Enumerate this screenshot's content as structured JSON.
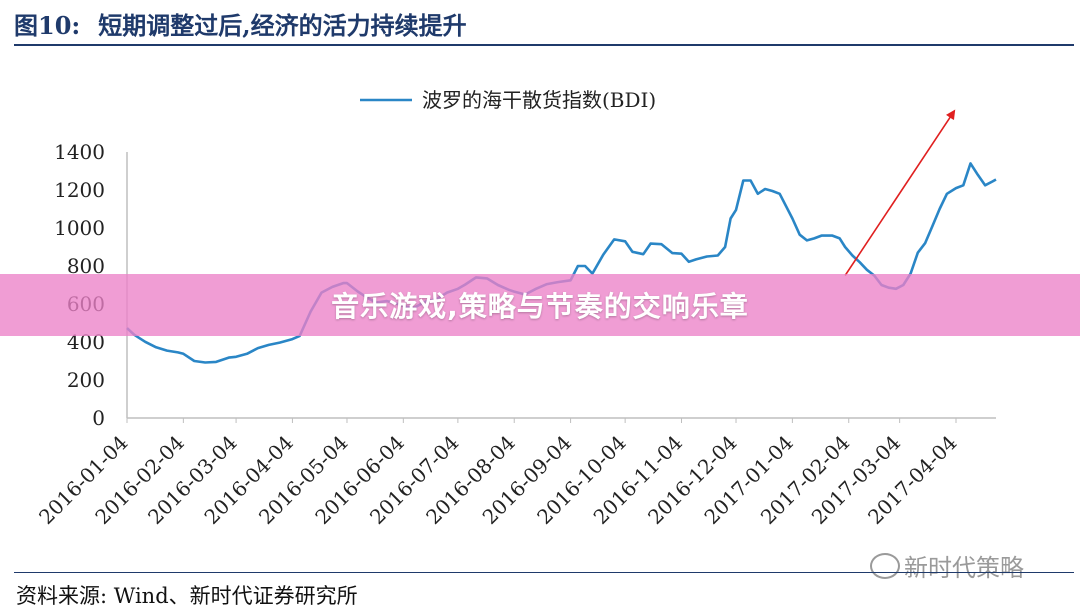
{
  "figure": {
    "label": "图10:",
    "title": "短期调整过后,经济的活力持续提升",
    "source": "资料来源: Wind、新时代证券研究所"
  },
  "overlay": {
    "text": "音乐游戏,策略与节奏的交响乐章"
  },
  "watermark": {
    "text": "新时代策略"
  },
  "chart_data": {
    "type": "line",
    "title": "",
    "xlabel": "",
    "ylabel": "",
    "ylim": [
      0,
      1400
    ],
    "yticks": [
      0,
      200,
      400,
      600,
      800,
      1000,
      1200,
      1400
    ],
    "xticks": [
      "2016-01-04",
      "2016-02-04",
      "2016-03-04",
      "2016-04-04",
      "2016-05-04",
      "2016-06-04",
      "2016-07-04",
      "2016-08-04",
      "2016-09-04",
      "2016-10-04",
      "2016-11-04",
      "2016-12-04",
      "2017-01-04",
      "2017-02-04",
      "2017-03-04",
      "2017-04-04"
    ],
    "grid": false,
    "legend": {
      "position": "top-center"
    },
    "annotations": [
      {
        "type": "arrow",
        "color": "#e02020",
        "from": [
          "2017-02-02",
          750
        ],
        "to": [
          "2017-04-03",
          1615
        ]
      }
    ],
    "series": [
      {
        "name": "波罗的海干散货指数(BDI)",
        "color": "#2a86c6",
        "points": [
          [
            "2016-01-04",
            473
          ],
          [
            "2016-01-08",
            438
          ],
          [
            "2016-01-14",
            401
          ],
          [
            "2016-01-20",
            372
          ],
          [
            "2016-01-26",
            355
          ],
          [
            "2016-02-01",
            345
          ],
          [
            "2016-02-04",
            338
          ],
          [
            "2016-02-10",
            300
          ],
          [
            "2016-02-16",
            292
          ],
          [
            "2016-02-22",
            295
          ],
          [
            "2016-02-29",
            318
          ],
          [
            "2016-03-04",
            322
          ],
          [
            "2016-03-10",
            338
          ],
          [
            "2016-03-16",
            368
          ],
          [
            "2016-03-22",
            385
          ],
          [
            "2016-03-28",
            397
          ],
          [
            "2016-04-04",
            415
          ],
          [
            "2016-04-08",
            432
          ],
          [
            "2016-04-14",
            560
          ],
          [
            "2016-04-20",
            660
          ],
          [
            "2016-04-26",
            690
          ],
          [
            "2016-05-02",
            710
          ],
          [
            "2016-05-04",
            710
          ],
          [
            "2016-05-10",
            665
          ],
          [
            "2016-05-16",
            628
          ],
          [
            "2016-05-20",
            608
          ],
          [
            "2016-05-26",
            615
          ],
          [
            "2016-06-01",
            600
          ],
          [
            "2016-06-06",
            585
          ],
          [
            "2016-06-10",
            580
          ],
          [
            "2016-06-16",
            612
          ],
          [
            "2016-06-22",
            625
          ],
          [
            "2016-06-28",
            660
          ],
          [
            "2016-07-04",
            680
          ],
          [
            "2016-07-08",
            702
          ],
          [
            "2016-07-14",
            740
          ],
          [
            "2016-07-20",
            735
          ],
          [
            "2016-07-26",
            700
          ],
          [
            "2016-08-01",
            675
          ],
          [
            "2016-08-04",
            665
          ],
          [
            "2016-08-10",
            650
          ],
          [
            "2016-08-16",
            680
          ],
          [
            "2016-08-22",
            705
          ],
          [
            "2016-08-28",
            715
          ],
          [
            "2016-09-04",
            725
          ],
          [
            "2016-09-08",
            800
          ],
          [
            "2016-09-12",
            800
          ],
          [
            "2016-09-16",
            760
          ],
          [
            "2016-09-22",
            860
          ],
          [
            "2016-09-28",
            940
          ],
          [
            "2016-10-04",
            930
          ],
          [
            "2016-10-08",
            875
          ],
          [
            "2016-10-14",
            862
          ],
          [
            "2016-10-18",
            918
          ],
          [
            "2016-10-24",
            915
          ],
          [
            "2016-10-30",
            868
          ],
          [
            "2016-11-04",
            865
          ],
          [
            "2016-11-08",
            822
          ],
          [
            "2016-11-12",
            835
          ],
          [
            "2016-11-18",
            850
          ],
          [
            "2016-11-24",
            855
          ],
          [
            "2016-11-28",
            900
          ],
          [
            "2016-12-01",
            1050
          ],
          [
            "2016-12-04",
            1095
          ],
          [
            "2016-12-08",
            1250
          ],
          [
            "2016-12-12",
            1250
          ],
          [
            "2016-12-16",
            1180
          ],
          [
            "2016-12-20",
            1205
          ],
          [
            "2016-12-24",
            1195
          ],
          [
            "2016-12-28",
            1180
          ],
          [
            "2017-01-04",
            1050
          ],
          [
            "2017-01-08",
            965
          ],
          [
            "2017-01-12",
            935
          ],
          [
            "2017-01-16",
            945
          ],
          [
            "2017-01-20",
            960
          ],
          [
            "2017-01-26",
            960
          ],
          [
            "2017-01-30",
            945
          ],
          [
            "2017-02-02",
            900
          ],
          [
            "2017-02-06",
            855
          ],
          [
            "2017-02-10",
            820
          ],
          [
            "2017-02-14",
            780
          ],
          [
            "2017-02-18",
            750
          ],
          [
            "2017-02-22",
            700
          ],
          [
            "2017-02-26",
            686
          ],
          [
            "2017-03-02",
            680
          ],
          [
            "2017-03-06",
            700
          ],
          [
            "2017-03-10",
            760
          ],
          [
            "2017-03-14",
            870
          ],
          [
            "2017-03-18",
            920
          ],
          [
            "2017-03-22",
            1010
          ],
          [
            "2017-03-26",
            1100
          ],
          [
            "2017-03-30",
            1180
          ],
          [
            "2017-04-04",
            1210
          ],
          [
            "2017-04-08",
            1225
          ],
          [
            "2017-04-12",
            1340
          ],
          [
            "2017-04-16",
            1280
          ],
          [
            "2017-04-20",
            1225
          ],
          [
            "2017-04-24",
            1245
          ],
          [
            "2017-04-26",
            1255
          ]
        ]
      }
    ]
  }
}
